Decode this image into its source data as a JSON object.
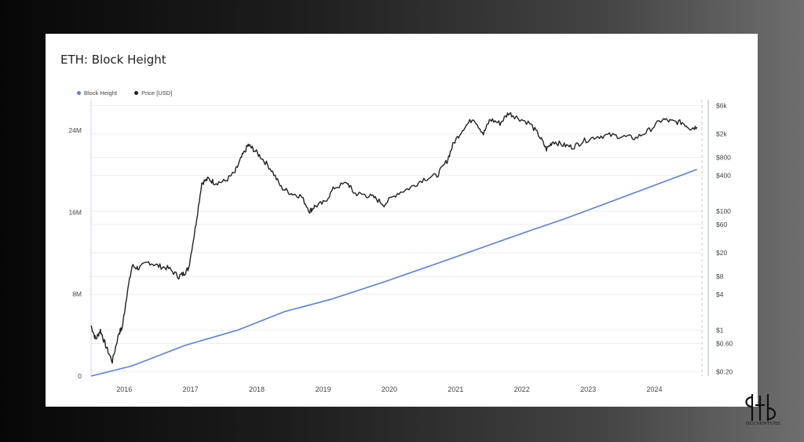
{
  "title": "ETH: Block Height",
  "legend": [
    {
      "label": "Block Height",
      "color": "#5b7fd6"
    },
    {
      "label": "Price [USD]",
      "color": "#222222"
    }
  ],
  "logo_text": "HCCVENTURE",
  "chart_data": {
    "type": "line",
    "title": "ETH: Block Height",
    "x_ticks": [
      "2016",
      "2017",
      "2018",
      "2019",
      "2020",
      "2021",
      "2022",
      "2023",
      "2024"
    ],
    "left_axis": {
      "ticks": [
        "0",
        "8M",
        "16M",
        "24M"
      ],
      "tick_values": [
        0,
        8000000,
        16000000,
        24000000
      ],
      "ylim": [
        0,
        24000000
      ]
    },
    "right_axis": {
      "scale": "log",
      "ticks": [
        "$6k",
        "$2k",
        "$800",
        "$400",
        "$100",
        "$60",
        "$20",
        "$8",
        "$4",
        "$1",
        "$0.60",
        "$0.20"
      ],
      "tick_values": [
        6000,
        2000,
        800,
        400,
        100,
        60,
        20,
        8,
        4,
        1,
        0.6,
        0.2
      ]
    },
    "series": [
      {
        "name": "Block Height",
        "axis": "left",
        "color": "#5b7fd6",
        "x": [
          2015.58,
          2016.2,
          2017.0,
          2017.8,
          2018.5,
          2019.2,
          2020.0,
          2020.8,
          2021.5,
          2022.2,
          2022.7,
          2023.2,
          2023.9,
          2024.6,
          2024.72
        ],
        "values": [
          0,
          1000000,
          3000000,
          4500000,
          6300000,
          7500000,
          9200000,
          11000000,
          12600000,
          14200000,
          15300000,
          16500000,
          18200000,
          19900000,
          20200000
        ]
      },
      {
        "name": "Price [USD]",
        "axis": "right",
        "color": "#222222",
        "x": [
          2015.58,
          2015.65,
          2015.72,
          2015.8,
          2015.9,
          2016.0,
          2016.05,
          2016.12,
          2016.2,
          2016.3,
          2016.45,
          2016.6,
          2016.75,
          2016.9,
          2016.98,
          2017.05,
          2017.15,
          2017.25,
          2017.35,
          2017.45,
          2017.6,
          2017.75,
          2017.85,
          2017.95,
          2018.03,
          2018.15,
          2018.3,
          2018.45,
          2018.6,
          2018.75,
          2018.88,
          2018.95,
          2019.1,
          2019.25,
          2019.45,
          2019.55,
          2019.7,
          2019.85,
          2020.0,
          2020.2,
          2020.4,
          2020.6,
          2020.8,
          2020.95,
          2021.05,
          2021.2,
          2021.35,
          2021.5,
          2021.6,
          2021.75,
          2021.88,
          2022.0,
          2022.2,
          2022.35,
          2022.45,
          2022.55,
          2022.7,
          2022.85,
          2023.0,
          2023.2,
          2023.4,
          2023.6,
          2023.8,
          2024.0,
          2024.2,
          2024.35,
          2024.5,
          2024.62,
          2024.72
        ],
        "values": [
          1.2,
          0.7,
          1.0,
          0.55,
          0.3,
          0.9,
          1.1,
          4.0,
          12,
          11,
          14,
          12,
          11,
          8,
          9,
          11,
          50,
          300,
          350,
          300,
          320,
          450,
          800,
          1300,
          1100,
          800,
          500,
          250,
          200,
          180,
          100,
          120,
          140,
          250,
          300,
          200,
          190,
          170,
          130,
          200,
          250,
          350,
          400,
          700,
          1400,
          2500,
          3700,
          2000,
          3500,
          3000,
          4500,
          3800,
          3000,
          1800,
          1100,
          1500,
          1300,
          1200,
          1500,
          1800,
          1900,
          1800,
          1700,
          2300,
          3500,
          3200,
          3100,
          2500,
          2600
        ]
      }
    ],
    "grid": true
  }
}
